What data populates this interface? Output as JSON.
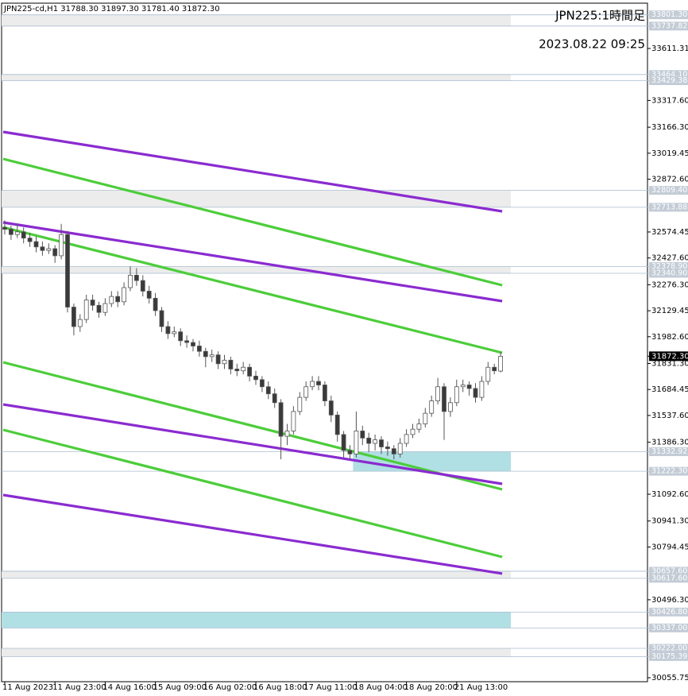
{
  "chart_data": {
    "type": "candlestick",
    "title": "JPN225-cd,H1  31788.30 31897.30 31781.40 31872.30",
    "annotations": [
      "JPN225:1時間足",
      "2023.08.22 09:25"
    ],
    "categories": [
      "11 Aug 2023",
      null,
      null,
      null,
      null,
      null,
      null,
      null,
      "11 Aug 23:00",
      null,
      null,
      null,
      null,
      null,
      null,
      null,
      "14 Aug 16:00",
      null,
      null,
      null,
      null,
      null,
      null,
      null,
      "15 Aug 09:00",
      null,
      null,
      null,
      null,
      null,
      null,
      null,
      "16 Aug 02:00",
      null,
      null,
      null,
      null,
      null,
      null,
      null,
      "16 Aug 18:00",
      null,
      null,
      null,
      null,
      null,
      null,
      null,
      "17 Aug 11:00",
      null,
      null,
      null,
      null,
      null,
      null,
      null,
      "18 Aug 04:00",
      null,
      null,
      null,
      null,
      null,
      null,
      null,
      "18 Aug 20:00",
      null,
      null,
      null,
      null,
      null,
      null,
      null,
      "21 Aug 13:00",
      null,
      null,
      null,
      null,
      null,
      null,
      null
    ],
    "open": [
      32600,
      32590,
      32560,
      32575,
      32540,
      32520,
      32490,
      32470,
      32480,
      32440,
      32560,
      32150,
      32040,
      32080,
      32190,
      32160,
      32120,
      32170,
      32210,
      32180,
      32260,
      32330,
      32300,
      32240,
      32200,
      32130,
      32040,
      32000,
      32010,
      31960,
      31950,
      31930,
      31900,
      31870,
      31880,
      31830,
      31850,
      31800,
      31790,
      31810,
      31760,
      31740,
      31700,
      31660,
      31610,
      31420,
      31450,
      31560,
      31640,
      31700,
      31730,
      31710,
      31620,
      31540,
      31430,
      31340,
      31320,
      31450,
      31410,
      31380,
      31400,
      31360,
      31350,
      31320,
      31380,
      31430,
      31460,
      31490,
      31550,
      31620,
      31700,
      31560,
      31610,
      31700,
      31710,
      31690,
      31640,
      31730,
      31810,
      31788.3
    ],
    "high": [
      32640,
      32610,
      32620,
      32600,
      32570,
      32550,
      32520,
      32510,
      32500,
      32620,
      32580,
      32170,
      32110,
      32220,
      32220,
      32180,
      32200,
      32240,
      32240,
      32290,
      32380,
      32370,
      32330,
      32270,
      32230,
      32150,
      32070,
      32040,
      32030,
      31990,
      31970,
      31960,
      31920,
      31910,
      31900,
      31880,
      31870,
      31830,
      31840,
      31830,
      31790,
      31760,
      31730,
      31690,
      31630,
      31490,
      31590,
      31670,
      31730,
      31760,
      31760,
      31730,
      31650,
      31560,
      31450,
      31370,
      31560,
      31480,
      31440,
      31430,
      31420,
      31390,
      31370,
      31410,
      31460,
      31490,
      31520,
      31580,
      31650,
      31750,
      31720,
      31640,
      31740,
      31740,
      31730,
      31720,
      31760,
      31840,
      31830,
      31897.3
    ],
    "low": [
      32560,
      32530,
      32540,
      32510,
      32490,
      32460,
      32440,
      32450,
      32400,
      32420,
      32120,
      31990,
      32010,
      32060,
      32130,
      32090,
      32100,
      32150,
      32150,
      32160,
      32240,
      32270,
      32210,
      32170,
      32100,
      32010,
      31970,
      31980,
      31930,
      31920,
      31900,
      31870,
      31810,
      31840,
      31800,
      31800,
      31770,
      31760,
      31770,
      31730,
      31710,
      31670,
      31630,
      31580,
      31290,
      31370,
      31430,
      31540,
      31620,
      31680,
      31680,
      31590,
      31500,
      31390,
      31300,
      31290,
      31300,
      31370,
      31330,
      31340,
      31320,
      31310,
      31290,
      31300,
      31360,
      31410,
      31440,
      31470,
      31530,
      31600,
      31400,
      31530,
      31590,
      31670,
      31650,
      31610,
      31620,
      31710,
      31770,
      31781.4
    ],
    "close": [
      32590,
      32560,
      32575,
      32540,
      32520,
      32490,
      32470,
      32480,
      32440,
      32560,
      32150,
      32040,
      32080,
      32190,
      32160,
      32120,
      32170,
      32210,
      32180,
      32260,
      32330,
      32300,
      32240,
      32200,
      32130,
      32040,
      32000,
      32010,
      31960,
      31950,
      31930,
      31900,
      31870,
      31880,
      31830,
      31850,
      31800,
      31790,
      31810,
      31760,
      31740,
      31700,
      31660,
      31610,
      31420,
      31450,
      31560,
      31640,
      31700,
      31730,
      31710,
      31620,
      31540,
      31430,
      31340,
      31320,
      31450,
      31410,
      31380,
      31400,
      31360,
      31350,
      31320,
      31380,
      31430,
      31460,
      31490,
      31550,
      31620,
      31700,
      31560,
      31610,
      31700,
      31710,
      31690,
      31640,
      31730,
      31810,
      31790,
      31872.3
    ],
    "up_color": "#ffffff",
    "down_color": "#3a3a3a",
    "wick_color": "#555555",
    "ylim": [
      30033.3,
      33867.2
    ],
    "yticks": [
      33611.31,
      {
        "value": 33317.6,
        "label": "33317.60"
      },
      {
        "value": 33166.3,
        "label": "33166.30"
      },
      33019.45,
      {
        "value": 32872.6,
        "label": "32872.60"
      },
      32574.45,
      {
        "value": 32427.6,
        "label": "32427.60"
      },
      {
        "value": 32276.3,
        "label": "32276.30"
      },
      32129.45,
      {
        "value": 31982.6,
        "label": "31982.60"
      },
      {
        "value": 31831.3,
        "label": "31831.30"
      },
      31684.45,
      {
        "value": 31537.6,
        "label": "31537.60"
      },
      {
        "value": 31386.3,
        "label": "31386.30"
      },
      {
        "value": 31092.6,
        "label": "31092.60"
      },
      {
        "value": 30941.3,
        "label": "30941.30"
      },
      30794.45,
      {
        "value": 30496.3,
        "label": "30496.30"
      },
      30055.75
    ],
    "zones": [
      {
        "top": {
          "value": 33801.3,
          "label": "33801.30"
        },
        "bottom": {
          "value": 33737.82,
          "label": "33737.82"
        },
        "color": "#ececec",
        "start": 0
      },
      {
        "top": {
          "value": 33464.1,
          "label": "33464.10"
        },
        "bottom": {
          "value": 33429.38,
          "label": "33429.38"
        },
        "color": "#ececec",
        "start": 0
      },
      {
        "top": {
          "value": 32809.4,
          "label": "32809.40"
        },
        "bottom": {
          "value": 32713.88,
          "label": "32713.88"
        },
        "color": "#ececec",
        "start": 0
      },
      {
        "top": {
          "value": 32378.9,
          "label": "32378.90"
        },
        "bottom": {
          "value": 32340.9,
          "label": "32340.90"
        },
        "color": "#ececec",
        "start": 0
      },
      {
        "top": {
          "value": 31332.92,
          "label": "31332.92"
        },
        "bottom": {
          "value": 31222.3,
          "label": "31222.30"
        },
        "color": "#b0dfe4",
        "start": 56
      },
      {
        "top": {
          "value": 30657.6,
          "label": "30657.60"
        },
        "bottom": {
          "value": 30617.6,
          "label": "30617.60"
        },
        "color": "#ececec",
        "start": 0
      },
      {
        "top": {
          "value": 30426.8,
          "label": "30426.80"
        },
        "bottom": {
          "value": 30337,
          "label": "30337.00"
        },
        "color": "#b0dfe4",
        "start": 0
      },
      {
        "top": {
          "value": 30222,
          "label": "30222.00"
        },
        "bottom": {
          "value": 30175.39,
          "label": "30175.39"
        },
        "color": "#ececec",
        "start": 0
      }
    ],
    "lines": [
      {
        "color": "#8a2bd0",
        "start": 33139.9,
        "end": 32691.0
      },
      {
        "color": "#4ccd3a",
        "start": 32987.3,
        "end": 32273.5
      },
      {
        "color": "#8a2bd0",
        "start": 32628.1,
        "end": 32183.7
      },
      {
        "color": "#4ccd3a",
        "start": 32601.2,
        "end": 31891.9
      },
      {
        "color": "#4ccd3a",
        "start": 31838.0,
        "end": 31119.7
      },
      {
        "color": "#8a2bd0",
        "start": 31600.0,
        "end": 31151.2
      },
      {
        "color": "#4ccd3a",
        "start": 31456.4,
        "end": 30738.1
      },
      {
        "color": "#8a2bd0",
        "start": 31088.3,
        "end": 30644.0
      }
    ],
    "last_price": {
      "value": 31872.3,
      "label": "31872.30"
    }
  }
}
